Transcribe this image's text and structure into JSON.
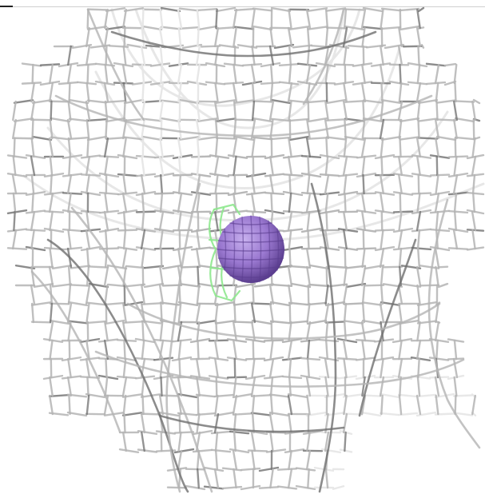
{
  "viewer": {
    "background": "#ffffff",
    "mesh_colors": {
      "light": "#e6e6e6",
      "mid": "#b4b4b4",
      "dark": "#6f6f6f"
    },
    "sphere_color": "#9a78d0",
    "sphere_dark": "#5b3e8f",
    "sphere_light": "#c7b0ee",
    "ligand_color": "#8ee88e"
  }
}
